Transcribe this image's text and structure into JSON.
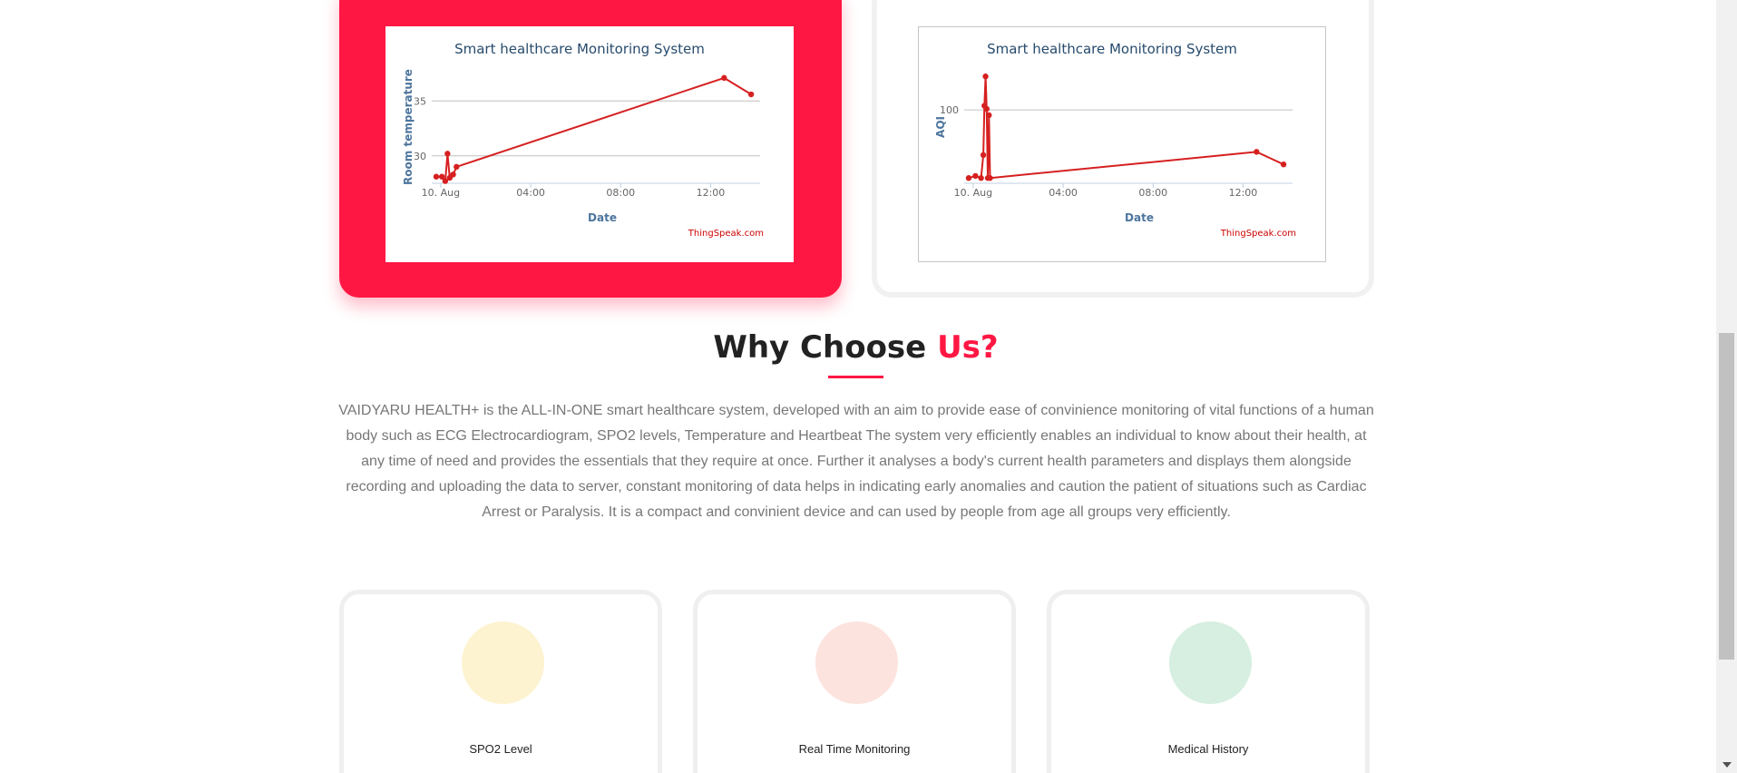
{
  "charts": [
    {
      "id": "temp",
      "active": true,
      "title": "Smart healthcare Monitoring System",
      "ylabel": "Room temperature",
      "xlabel": "Date",
      "credit": "ThingSpeak.com",
      "xticks": [
        "10. Aug",
        "04:00",
        "08:00",
        "12:00"
      ],
      "yticks": [
        "30",
        "35"
      ]
    },
    {
      "id": "aqi",
      "active": false,
      "title": "Smart healthcare Monitoring System",
      "ylabel": "AQI",
      "xlabel": "Date",
      "credit": "ThingSpeak.com",
      "xticks": [
        "10. Aug",
        "04:00",
        "08:00",
        "12:00"
      ],
      "yticks": [
        "100"
      ]
    }
  ],
  "chart_data": [
    {
      "type": "line",
      "title": "Smart healthcare Monitoring System",
      "xlabel": "Date",
      "ylabel": "Room temperature",
      "x_unit": "hours since 10. Aug 00:00",
      "xlim": [
        -0.4,
        14.2
      ],
      "ylim": [
        27.5,
        38
      ],
      "color": "#d62020",
      "series": [
        {
          "x": [
            -0.2,
            0.05,
            0.2,
            0.3,
            0.4,
            0.55,
            0.7,
            12.6,
            13.8
          ],
          "y": [
            28.1,
            28.1,
            27.7,
            30.2,
            28.0,
            28.3,
            29.0,
            37.1,
            35.6
          ]
        }
      ]
    },
    {
      "type": "line",
      "title": "Smart healthcare Monitoring System",
      "xlabel": "Date",
      "ylabel": "AQI",
      "xlim": [
        -0.4,
        14.2
      ],
      "ylim": [
        30,
        140
      ],
      "color": "#d62020",
      "series": [
        {
          "x": [
            -0.2,
            0.1,
            0.35,
            0.45,
            0.5,
            0.55,
            0.6,
            0.65,
            0.7,
            0.75,
            12.6,
            13.8
          ],
          "y": [
            35,
            37,
            35,
            57,
            104,
            132,
            101,
            35,
            95,
            35,
            60,
            48
          ]
        }
      ]
    }
  ],
  "why": {
    "title_main": "Why Choose",
    "title_accent": "Us?",
    "paragraph": "VAIDYARU HEALTH+ is the ALL-IN-ONE smart healthcare system, developed with an aim to provide ease of convinience monitoring of vital functions of a human body such as ECG Electrocardiogram, SPO2 levels, Temperature and Heartbeat The system very efficiently enables an individual to know about their health, at any time of need and provides the essentials that they require at once. Further it analyses a body's current health parameters and displays them alongside recording and uploading the data to server, constant monitoring of data helps in indicating early anomalies and caution the patient of situations such as Cardiac Arrest or Paralysis. It is a compact and convinient device and can used by people from age all groups very efficiently."
  },
  "features": [
    {
      "label": "SPO2 Level",
      "color": "#fdf3d0"
    },
    {
      "label": "Real Time Monitoring",
      "color": "#fde3de"
    },
    {
      "label": "Medical History",
      "color": "#d6efe0"
    }
  ]
}
